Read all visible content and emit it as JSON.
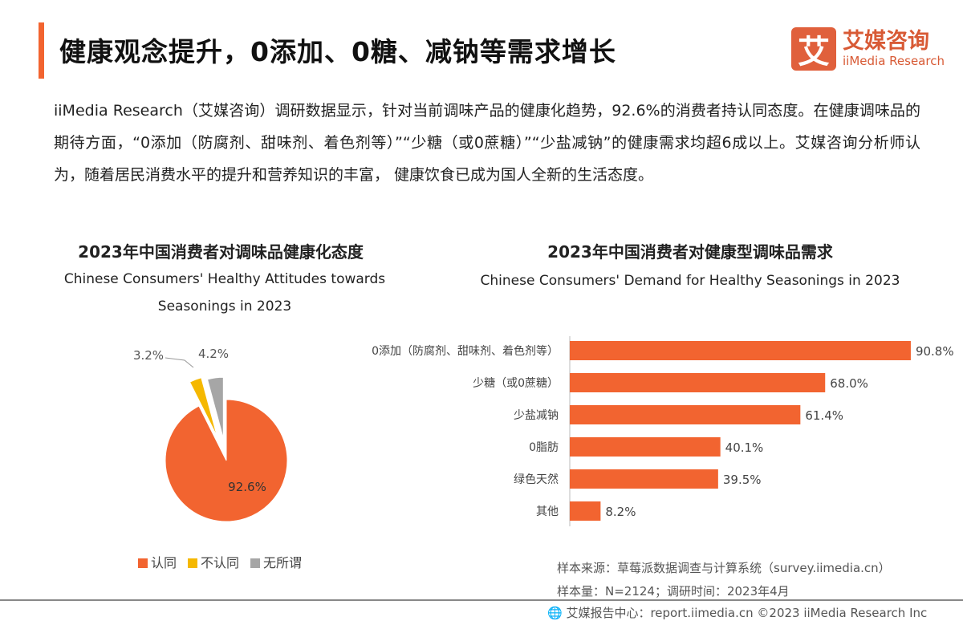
{
  "header": {
    "title": "健康观念提升，0添加、0糖、减钠等需求增长",
    "logo_mark": "艾",
    "logo_cn": "艾媒咨询",
    "logo_en": "iiMedia Research"
  },
  "paragraph": "iiMedia Research（艾媒咨询）调研数据显示，针对当前调味产品的健康化趋势，92.6%的消费者持认同态度。在健康调味品的期待方面，“0添加（防腐剂、甜味剂、着色剂等）”“少糖（或0蔗糖）”“少盐减钠”的健康需求均超6成以上。艾媒咨询分析师认为，随着居民消费水平的提升和营养知识的丰富， 健康饮食已成为国人全新的生活态度。",
  "colors": {
    "accent": "#f26430",
    "yellow": "#f5b800",
    "grey": "#a6a6a6"
  },
  "chart_data": [
    {
      "type": "pie",
      "title": "2023年中国消费者对调味品健康化态度",
      "subtitle": "Chinese Consumers' Healthy Attitudes towards Seasonings in 2023",
      "categories": [
        "认同",
        "不认同",
        "无所谓"
      ],
      "values": [
        92.6,
        3.2,
        4.2
      ],
      "labels": [
        "92.6%",
        "3.2%",
        "4.2%"
      ],
      "colors": [
        "#f26430",
        "#f5b800",
        "#a6a6a6"
      ],
      "legend": "bottom"
    },
    {
      "type": "bar",
      "orientation": "horizontal",
      "title": "2023年中国消费者对健康型调味品需求",
      "subtitle": "Chinese Consumers' Demand for Healthy Seasonings in 2023",
      "categories": [
        "0添加（防腐剂、甜味剂、着色剂等）",
        "少糖（或0蔗糖）",
        "少盐减钠",
        "0脂肪",
        "绿色天然",
        "其他"
      ],
      "values": [
        90.8,
        68.0,
        61.4,
        40.1,
        39.5,
        8.2
      ],
      "labels": [
        "90.8%",
        "68.0%",
        "61.4%",
        "40.1%",
        "39.5%",
        "8.2%"
      ],
      "color": "#f26430"
    }
  ],
  "notes": {
    "source": "样本来源：草莓派数据调查与计算系统（survey.iimedia.cn）",
    "sample": "样本量：N=2124；调研时间：2023年4月"
  },
  "footer": "艾媒报告中心：report.iimedia.cn   ©2023  iiMedia Research  Inc"
}
